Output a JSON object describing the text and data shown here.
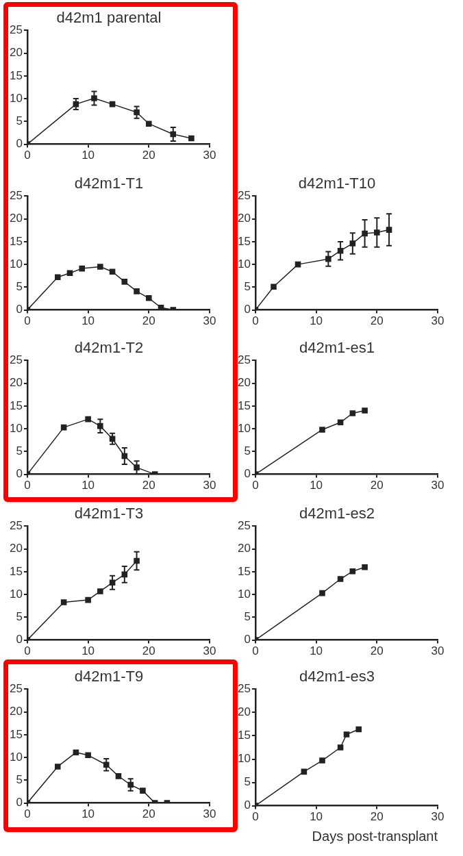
{
  "chart_data": [
    {
      "type": "line",
      "title": "d42m1 parental",
      "xlim": [
        0,
        30
      ],
      "xticks": [
        0,
        10,
        20,
        30
      ],
      "ylim": [
        0,
        25
      ],
      "yticks": [
        0,
        5,
        10,
        15,
        20,
        25
      ],
      "marker": "square",
      "line_style": "solid",
      "series": [
        {
          "color": "#222222",
          "x": [
            0,
            8,
            11,
            14,
            18,
            20,
            24,
            27
          ],
          "values": [
            0,
            8.8,
            10.1,
            8.8,
            7.0,
            4.5,
            2.2,
            1.3
          ],
          "errors": [
            null,
            1.2,
            1.5,
            null,
            1.3,
            null,
            1.5,
            null
          ]
        }
      ]
    },
    {
      "type": "line",
      "title": "d42m1-T1",
      "xlim": [
        0,
        30
      ],
      "xticks": [
        0,
        10,
        20,
        30
      ],
      "ylim": [
        0,
        25
      ],
      "yticks": [
        0,
        5,
        10,
        15,
        20,
        25
      ],
      "marker": "square",
      "line_style": "solid",
      "series": [
        {
          "color": "#222222",
          "x": [
            0,
            5,
            7,
            9,
            12,
            14,
            16,
            18,
            20,
            22,
            24
          ],
          "values": [
            0,
            7.2,
            8.1,
            9.1,
            9.5,
            8.4,
            6.2,
            4.1,
            2.6,
            0.5,
            0
          ]
        }
      ]
    },
    {
      "type": "line",
      "title": "d42m1-T10",
      "xlim": [
        0,
        30
      ],
      "xticks": [
        0,
        10,
        20,
        30
      ],
      "ylim": [
        0,
        25
      ],
      "yticks": [
        0,
        5,
        10,
        15,
        20,
        25
      ],
      "marker": "square",
      "line_style": "solid",
      "series": [
        {
          "color": "#222222",
          "x": [
            0,
            3,
            7,
            12,
            14,
            16,
            18,
            20,
            22
          ],
          "values": [
            0,
            5.1,
            10,
            11.2,
            13,
            14.6,
            16.8,
            17,
            17.6
          ],
          "errors": [
            null,
            null,
            null,
            1.6,
            2,
            2.3,
            3,
            3.2,
            3.5
          ]
        }
      ]
    },
    {
      "type": "line",
      "title": "d42m1-T2",
      "xlim": [
        0,
        30
      ],
      "xticks": [
        0,
        10,
        20,
        30
      ],
      "ylim": [
        0,
        25
      ],
      "yticks": [
        0,
        5,
        10,
        15,
        20,
        25
      ],
      "marker": "square",
      "line_style": "solid",
      "series": [
        {
          "color": "#222222",
          "x": [
            0,
            6,
            10,
            12,
            14,
            16,
            18,
            21
          ],
          "values": [
            0,
            10.3,
            12.1,
            10.6,
            7.8,
            4.0,
            1.5,
            0
          ],
          "errors": [
            null,
            null,
            null,
            1.5,
            1.2,
            1.8,
            1.4,
            null
          ]
        }
      ]
    },
    {
      "type": "line",
      "title": "d42m1-es1",
      "xlim": [
        0,
        30
      ],
      "xticks": [
        0,
        10,
        20,
        30
      ],
      "ylim": [
        0,
        25
      ],
      "yticks": [
        0,
        5,
        10,
        15,
        20,
        25
      ],
      "marker": "square",
      "line_style": "solid",
      "series": [
        {
          "color": "#222222",
          "x": [
            0,
            11,
            14,
            16,
            18
          ],
          "values": [
            0,
            9.8,
            11.4,
            13.4,
            14
          ]
        }
      ]
    },
    {
      "type": "line",
      "title": "d42m1-T3",
      "xlim": [
        0,
        30
      ],
      "xticks": [
        0,
        10,
        20,
        30
      ],
      "ylim": [
        0,
        25
      ],
      "yticks": [
        0,
        5,
        10,
        15,
        20,
        25
      ],
      "marker": "square",
      "line_style": "solid",
      "series": [
        {
          "color": "#222222",
          "x": [
            0,
            6,
            10,
            12,
            14,
            16,
            18
          ],
          "values": [
            0,
            8.3,
            8.8,
            10.7,
            12.6,
            14.4,
            17.4
          ],
          "errors": [
            null,
            null,
            null,
            null,
            1.5,
            1.8,
            2
          ]
        }
      ]
    },
    {
      "type": "line",
      "title": "d42m1-es2",
      "xlim": [
        0,
        30
      ],
      "xticks": [
        0,
        10,
        20,
        30
      ],
      "ylim": [
        0,
        25
      ],
      "yticks": [
        0,
        5,
        10,
        15,
        20,
        25
      ],
      "marker": "square",
      "line_style": "solid",
      "series": [
        {
          "color": "#222222",
          "x": [
            0,
            11,
            14,
            16,
            18
          ],
          "values": [
            0,
            10.3,
            13.4,
            15.1,
            16
          ]
        }
      ]
    },
    {
      "type": "line",
      "title": "d42m1-T9",
      "xlim": [
        0,
        30
      ],
      "xticks": [
        0,
        10,
        20,
        30
      ],
      "ylim": [
        0,
        25
      ],
      "yticks": [
        0,
        5,
        10,
        15,
        20,
        25
      ],
      "marker": "square",
      "line_style": "solid",
      "series": [
        {
          "color": "#222222",
          "x": [
            0,
            5,
            8,
            10,
            13,
            15,
            17,
            19,
            21,
            23
          ],
          "values": [
            0,
            8.0,
            11.1,
            10.5,
            8.4,
            5.9,
            4.0,
            2.7,
            0,
            0
          ],
          "errors": [
            null,
            null,
            null,
            null,
            1.3,
            null,
            1.3,
            null,
            null,
            null
          ]
        }
      ]
    },
    {
      "type": "line",
      "title": "d42m1-es3",
      "xlabel": "Days post-transplant",
      "xlim": [
        0,
        30
      ],
      "xticks": [
        0,
        10,
        20,
        30
      ],
      "ylim": [
        0,
        25
      ],
      "yticks": [
        0,
        5,
        10,
        15,
        20,
        25
      ],
      "marker": "square",
      "line_style": "solid",
      "series": [
        {
          "color": "#222222",
          "x": [
            0,
            8,
            11,
            14,
            15,
            17
          ],
          "values": [
            0,
            7.3,
            9.7,
            12.5,
            15.3,
            16.4
          ]
        }
      ]
    }
  ]
}
